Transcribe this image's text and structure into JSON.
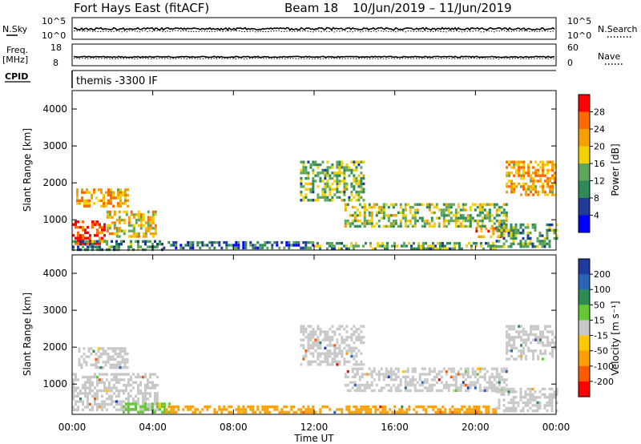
{
  "header": {
    "station": "Fort Hays East (fitACF)",
    "beam": "Beam 18",
    "date_range": "10/Jun/2019 – 11/Jun/2019"
  },
  "panels": {
    "nsky": {
      "label": "N.Sky",
      "right_label": "N.Search",
      "left_ticks": [
        "10^5",
        "10^0"
      ],
      "right_ticks": [
        "10^5",
        "10^0"
      ]
    },
    "freq": {
      "label_line1": "Freq.",
      "label_line2": "[MHz]",
      "right_label": "Nave",
      "left_ticks": [
        "18",
        "8"
      ],
      "right_ticks": [
        "60",
        "0"
      ]
    },
    "cpid": {
      "label": "CPID",
      "value": "themis -3300 IF"
    }
  },
  "colors": {
    "power_scale": [
      "#0000ff",
      "#1e3c96",
      "#2e8b57",
      "#5fa65a",
      "#f5d000",
      "#f5a000",
      "#ff6a00",
      "#ff0000"
    ],
    "velocity_scale": [
      "#ff0000",
      "#ff5a00",
      "#ffa000",
      "#ffc800",
      "#c8c8c8",
      "#64c832",
      "#2d8c50",
      "#2a64b4",
      "#1e3ca0"
    ],
    "ground_scatter": "#c8c8c8"
  },
  "chart_data": [
    {
      "type": "heatmap",
      "name": "power",
      "ylabel": "Slant Range [km]",
      "xlabel": "",
      "ylim": [
        180,
        4500
      ],
      "xlim_hours": [
        0,
        24
      ],
      "yticks": [
        1000,
        2000,
        3000,
        4000
      ],
      "xticks": [
        "00:00",
        "04:00",
        "08:00",
        "12:00",
        "16:00",
        "20:00",
        "00:00"
      ],
      "colorbar": {
        "label": "Power [dB]",
        "ticks": [
          "4",
          "8",
          "12",
          "16",
          "20",
          "24",
          "28"
        ],
        "range": [
          0,
          30
        ]
      },
      "regions": [
        {
          "t0": 0.0,
          "t1": 1.6,
          "r0": 320,
          "r1": 980,
          "level": 27
        },
        {
          "t0": 1.7,
          "t1": 4.2,
          "r0": 550,
          "r1": 1250,
          "level": 18
        },
        {
          "t0": 0.2,
          "t1": 2.8,
          "r0": 1350,
          "r1": 1850,
          "level": 20
        },
        {
          "t0": 0.0,
          "t1": 4.5,
          "r0": 200,
          "r1": 450,
          "level": 10
        },
        {
          "t0": 4.5,
          "t1": 12.0,
          "r0": 200,
          "r1": 420,
          "level": 8
        },
        {
          "t0": 12.0,
          "t1": 21.0,
          "r0": 200,
          "r1": 400,
          "level": 12
        },
        {
          "t0": 11.3,
          "t1": 14.5,
          "r0": 1550,
          "r1": 2600,
          "level": 13
        },
        {
          "t0": 13.5,
          "t1": 21.5,
          "r0": 850,
          "r1": 1450,
          "level": 14
        },
        {
          "t0": 20.0,
          "t1": 21.5,
          "r0": 550,
          "r1": 800,
          "level": 22
        },
        {
          "t0": 21.5,
          "t1": 24.0,
          "r0": 1700,
          "r1": 2600,
          "level": 20
        },
        {
          "t0": 21.0,
          "t1": 24.0,
          "r0": 300,
          "r1": 900,
          "level": 12
        }
      ]
    },
    {
      "type": "heatmap",
      "name": "velocity",
      "ylabel": "Slant Range [km]",
      "xlabel": "Time UT",
      "ylim": [
        180,
        4500
      ],
      "xlim_hours": [
        0,
        24
      ],
      "yticks": [
        1000,
        2000,
        3000,
        4000
      ],
      "xticks": [
        "00:00",
        "04:00",
        "08:00",
        "12:00",
        "16:00",
        "20:00",
        "00:00"
      ],
      "colorbar": {
        "label": "Velocity [m s⁻¹]",
        "ticks": [
          "200",
          "100",
          "50",
          "15",
          "-15",
          "-50",
          "-100",
          "-200"
        ],
        "range": [
          -250,
          250
        ]
      },
      "regions": [
        {
          "t0": 0.0,
          "t1": 4.2,
          "r0": 320,
          "r1": 1300,
          "level": 0
        },
        {
          "t0": 0.3,
          "t1": 2.8,
          "r0": 1450,
          "r1": 2000,
          "level": 0
        },
        {
          "t0": 2.5,
          "t1": 4.8,
          "r0": 250,
          "r1": 500,
          "level": 40
        },
        {
          "t0": 4.5,
          "t1": 21.0,
          "r0": 200,
          "r1": 420,
          "level": -60
        },
        {
          "t0": 11.3,
          "t1": 14.5,
          "r0": 1550,
          "r1": 2600,
          "level": 0
        },
        {
          "t0": 13.5,
          "t1": 21.5,
          "r0": 850,
          "r1": 1450,
          "level": 0
        },
        {
          "t0": 21.5,
          "t1": 24.0,
          "r0": 1700,
          "r1": 2600,
          "level": 0
        },
        {
          "t0": 21.0,
          "t1": 24.0,
          "r0": 300,
          "r1": 900,
          "level": 0
        }
      ]
    }
  ]
}
